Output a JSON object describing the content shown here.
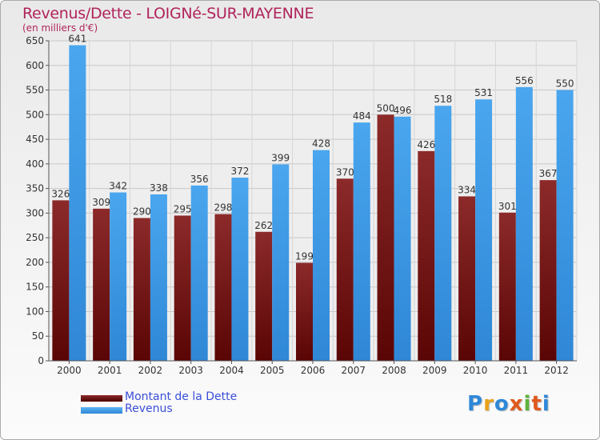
{
  "title": "Revenus/Dette - LOIGNé-SUR-MAYENNE",
  "subtitle": "(en milliers d'€)",
  "logo": "Proxiti",
  "colors": {
    "dette": "#7a1c1c",
    "revenus": "#3d9be6",
    "title": "#b0245b",
    "legend_text": "#3a4fd6"
  },
  "legend": {
    "dette_label": "Montant de la Dette",
    "revenus_label": "Revenus"
  },
  "chart_data": {
    "type": "bar",
    "title": "Revenus/Dette - LOIGNé-SUR-MAYENNE",
    "subtitle": "(en milliers d'€)",
    "categories": [
      "2000",
      "2001",
      "2002",
      "2003",
      "2004",
      "2005",
      "2006",
      "2007",
      "2008",
      "2009",
      "2010",
      "2011",
      "2012"
    ],
    "series": [
      {
        "name": "Montant de la Dette",
        "values": [
          326,
          309,
          290,
          295,
          298,
          262,
          199,
          370,
          500,
          426,
          334,
          301,
          367
        ]
      },
      {
        "name": "Revenus",
        "values": [
          641,
          342,
          338,
          356,
          372,
          399,
          428,
          484,
          496,
          518,
          531,
          556,
          550
        ]
      }
    ],
    "ylim": [
      0,
      650
    ],
    "yticks": [
      0,
      50,
      100,
      150,
      200,
      250,
      300,
      350,
      400,
      450,
      500,
      550,
      600,
      650
    ],
    "grid": true,
    "legend_position": "bottom-left"
  }
}
